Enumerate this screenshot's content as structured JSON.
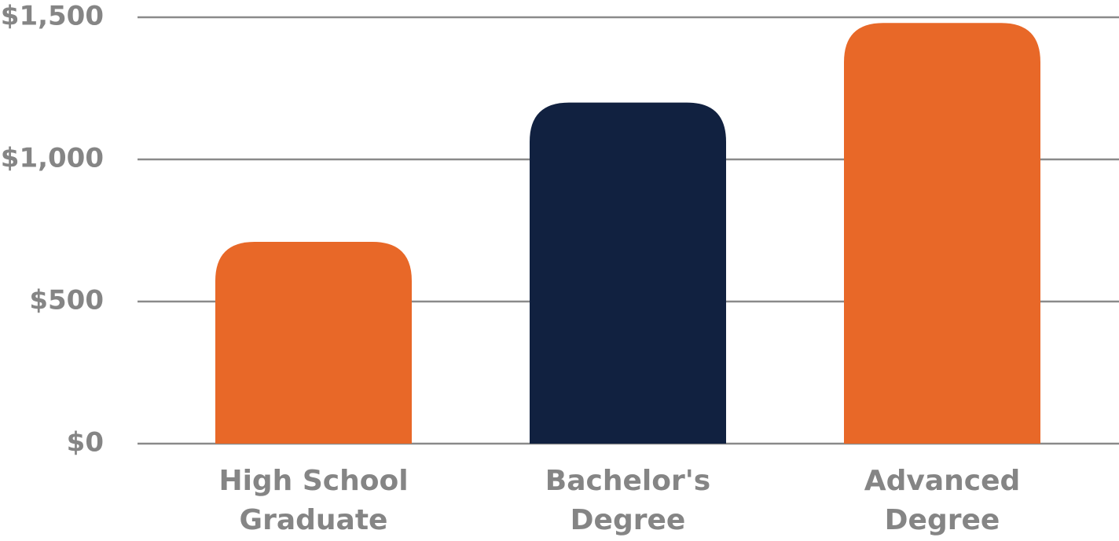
{
  "chart_data": {
    "type": "bar",
    "categories": [
      "High School Graduate",
      "Bachelor's Degree",
      "Advanced Degree"
    ],
    "values": [
      710,
      1200,
      1480
    ],
    "colors": [
      "#e86828",
      "#112140",
      "#e86828"
    ],
    "ylim": [
      0,
      1500
    ],
    "yticks": [
      {
        "value": 0,
        "label": "$0"
      },
      {
        "value": 500,
        "label": "$500"
      },
      {
        "value": 1000,
        "label": "$1,000"
      },
      {
        "value": 1500,
        "label": "$1,500"
      }
    ],
    "grid": true
  }
}
